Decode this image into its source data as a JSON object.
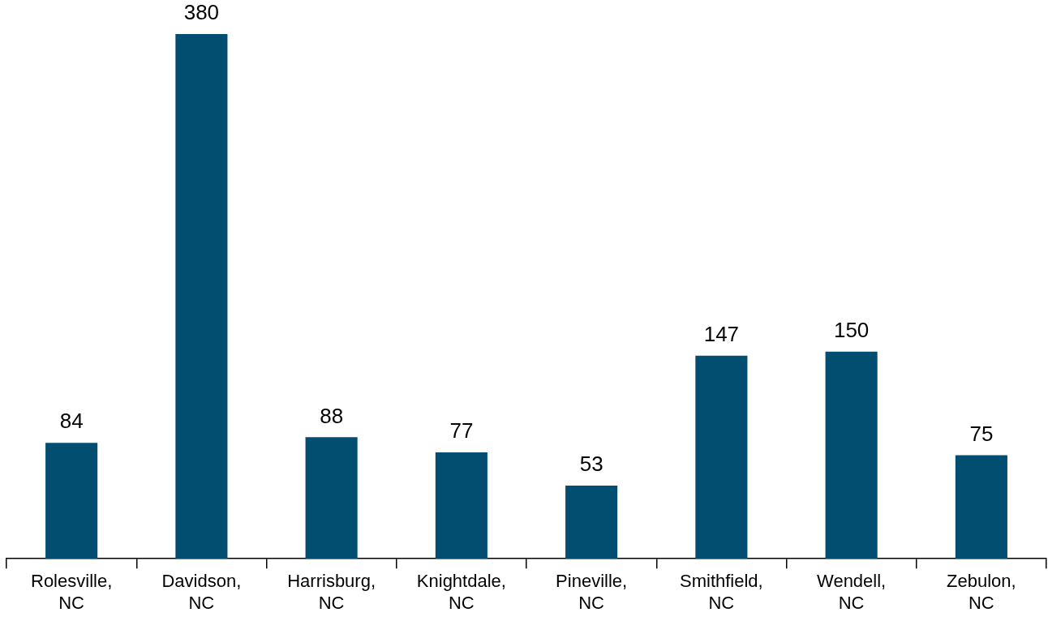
{
  "chart_data": {
    "type": "bar",
    "categories": [
      "Rolesville, NC",
      "Davidson, NC",
      "Harrisburg, NC",
      "Knightdale, NC",
      "Pineville, NC",
      "Smithfield, NC",
      "Wendell, NC",
      "Zebulon, NC"
    ],
    "values": [
      84,
      380,
      88,
      77,
      53,
      147,
      150,
      75
    ],
    "color": "#024e70",
    "data_labels": true
  }
}
